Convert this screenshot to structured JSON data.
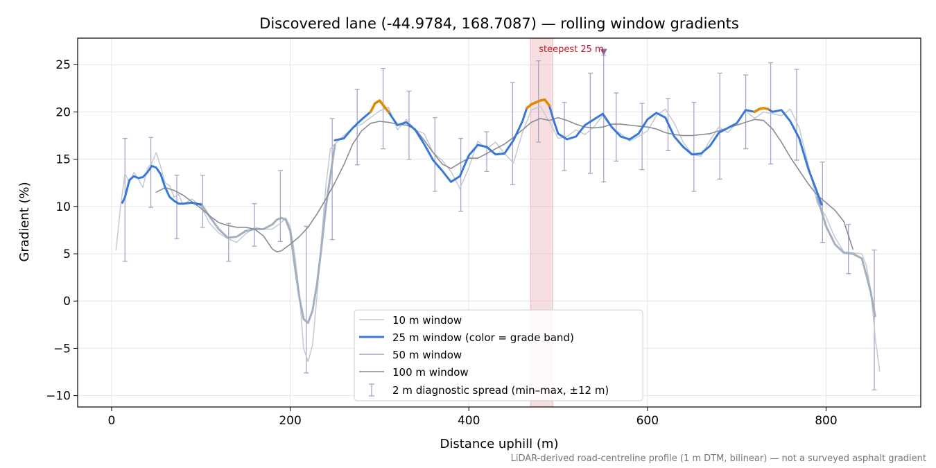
{
  "chart_data": {
    "type": "line",
    "title": "Discovered lane (-44.9784, 168.7087) — rolling window gradients",
    "xlabel": "Distance uphill (m)",
    "ylabel": "Gradient (%)",
    "xlim": [
      -38,
      906
    ],
    "ylim": [
      -11.2,
      27.8
    ],
    "x_ticks": [
      0,
      200,
      400,
      600,
      800
    ],
    "y_ticks": [
      -10,
      -5,
      0,
      5,
      10,
      15,
      20,
      25
    ],
    "grid": true,
    "legend_position": "lower-center",
    "footnote": "LiDAR-derived road-centreline profile (1 m DTM, bilinear) — not a surveyed asphalt gradient",
    "steepest": {
      "label": "steepest 25 m",
      "x_start": 469,
      "x_end": 494,
      "marker_x": 551,
      "marker_y": 26.3
    },
    "series": [
      {
        "name": "10 m window",
        "color": "#c3c8d2",
        "x": [
          5,
          10,
          15,
          20,
          25,
          30,
          35,
          40,
          45,
          50,
          55,
          60,
          65,
          70,
          75,
          80,
          90,
          100,
          110,
          120,
          130,
          140,
          150,
          160,
          170,
          180,
          190,
          195,
          200,
          205,
          210,
          215,
          220,
          225,
          230,
          235,
          240,
          245,
          250,
          260,
          270,
          280,
          290,
          300,
          310,
          320,
          330,
          340,
          350,
          360,
          370,
          380,
          390,
          400,
          410,
          420,
          430,
          440,
          450,
          460,
          470,
          480,
          490,
          500,
          510,
          520,
          530,
          540,
          550,
          560,
          570,
          580,
          590,
          600,
          610,
          620,
          630,
          640,
          650,
          660,
          670,
          680,
          690,
          700,
          710,
          720,
          730,
          740,
          750,
          760,
          770,
          780,
          790,
          800,
          810,
          820,
          830,
          840,
          845,
          850,
          855,
          860
        ],
        "values": [
          5.4,
          10.0,
          13.5,
          12.5,
          13.6,
          12.9,
          12.0,
          14.0,
          14.6,
          15.7,
          14.2,
          12.5,
          12.2,
          11.0,
          11.3,
          10.2,
          10.8,
          10.0,
          8.2,
          7.2,
          6.6,
          6.2,
          7.1,
          7.8,
          7.6,
          7.6,
          8.3,
          8.8,
          7.9,
          5.0,
          1.0,
          -5.0,
          -6.4,
          -4.6,
          0.5,
          6.6,
          12.2,
          16.1,
          16.6,
          17.5,
          18.3,
          18.7,
          19.4,
          20.1,
          20.5,
          18.1,
          19.2,
          18.1,
          17.7,
          15.7,
          14.9,
          13.7,
          11.9,
          14.1,
          16.9,
          16.1,
          16.8,
          15.6,
          14.6,
          17.8,
          20.2,
          20.6,
          19.0,
          17.2,
          17.4,
          18.1,
          17.6,
          18.4,
          19.6,
          18.3,
          17.7,
          16.9,
          17.4,
          18.0,
          19.6,
          20.3,
          18.8,
          16.8,
          15.5,
          15.3,
          17.0,
          18.4,
          17.8,
          18.9,
          20.1,
          19.3,
          20.0,
          19.8,
          19.6,
          20.3,
          18.3,
          14.5,
          10.4,
          8.9,
          6.7,
          5.2,
          5.1,
          5.0,
          3.8,
          1.1,
          -3.8,
          -7.4
        ]
      },
      {
        "name": "25 m window (color = grade band)",
        "color": "#3a78d8",
        "highlight_color": "#e08a00",
        "highlight_ranges": [
          [
            290,
            310
          ],
          [
            463,
            493
          ],
          [
            720,
            737
          ]
        ],
        "x": [
          12,
          15,
          20,
          25,
          30,
          35,
          40,
          45,
          50,
          55,
          60,
          65,
          70,
          75,
          80,
          90,
          100,
          250,
          260,
          270,
          280,
          290,
          295,
          300,
          305,
          310,
          320,
          330,
          340,
          350,
          360,
          370,
          380,
          390,
          400,
          410,
          420,
          430,
          440,
          450,
          460,
          465,
          470,
          475,
          480,
          485,
          490,
          495,
          500,
          510,
          520,
          530,
          540,
          550,
          560,
          570,
          580,
          590,
          600,
          610,
          620,
          630,
          640,
          650,
          660,
          670,
          680,
          690,
          700,
          710,
          720,
          725,
          730,
          735,
          740,
          750,
          760,
          770,
          780,
          790,
          795
        ],
        "values": [
          10.4,
          11.0,
          12.8,
          13.2,
          13.0,
          13.1,
          13.6,
          14.3,
          14.1,
          13.4,
          12.0,
          11.0,
          10.6,
          10.3,
          10.3,
          10.4,
          10.2,
          17.0,
          17.2,
          18.3,
          19.2,
          20.0,
          20.9,
          21.2,
          20.6,
          20.0,
          18.6,
          18.9,
          18.1,
          16.6,
          14.9,
          13.8,
          12.6,
          13.2,
          15.4,
          16.5,
          16.3,
          15.5,
          15.6,
          17.0,
          19.0,
          20.4,
          20.8,
          21.0,
          21.2,
          21.3,
          20.7,
          19.1,
          17.7,
          17.1,
          17.4,
          18.6,
          19.2,
          19.8,
          18.4,
          17.4,
          17.1,
          17.7,
          19.2,
          19.9,
          19.4,
          17.4,
          16.3,
          15.5,
          15.6,
          16.4,
          17.8,
          18.3,
          18.8,
          20.2,
          20.0,
          20.3,
          20.4,
          20.3,
          20.0,
          20.2,
          19.0,
          17.2,
          14.0,
          11.5,
          10.2
        ]
      },
      {
        "name": "50 m window",
        "color": "#9fabbd",
        "x": [
          100,
          110,
          120,
          130,
          140,
          150,
          160,
          170,
          180,
          185,
          190,
          195,
          200,
          205,
          210,
          215,
          220,
          225,
          230,
          235,
          240,
          250,
          790,
          800,
          810,
          820,
          830,
          840,
          845,
          850,
          855
        ],
        "values": [
          10.3,
          8.9,
          7.6,
          6.7,
          6.8,
          7.4,
          7.6,
          7.6,
          8.1,
          8.6,
          8.8,
          8.6,
          7.4,
          3.8,
          0.5,
          -1.9,
          -2.3,
          -1.0,
          1.8,
          5.7,
          10.0,
          16.5,
          11.0,
          7.9,
          6.0,
          5.1,
          5.0,
          4.5,
          2.8,
          0.9,
          -1.6
        ]
      },
      {
        "name": "100 m window",
        "color": "#868a96",
        "x": [
          50,
          60,
          70,
          80,
          90,
          100,
          110,
          120,
          130,
          140,
          150,
          160,
          170,
          180,
          185,
          190,
          200,
          210,
          220,
          230,
          240,
          250,
          260,
          270,
          280,
          290,
          300,
          310,
          320,
          330,
          340,
          350,
          360,
          370,
          380,
          390,
          400,
          410,
          420,
          430,
          440,
          450,
          460,
          470,
          480,
          490,
          500,
          510,
          520,
          530,
          540,
          550,
          560,
          570,
          580,
          590,
          600,
          610,
          620,
          630,
          640,
          650,
          660,
          670,
          680,
          690,
          700,
          710,
          720,
          730,
          740,
          750,
          760,
          770,
          780,
          790,
          800,
          810,
          820,
          830
        ],
        "values": [
          11.5,
          12.0,
          11.7,
          11.2,
          10.5,
          9.8,
          9.0,
          8.3,
          8.0,
          7.8,
          7.8,
          7.6,
          6.9,
          5.5,
          5.2,
          5.3,
          6.0,
          6.8,
          7.8,
          9.2,
          10.8,
          12.5,
          14.4,
          16.6,
          18.0,
          18.8,
          19.0,
          18.9,
          18.7,
          18.6,
          18.2,
          17.0,
          15.7,
          14.5,
          14.0,
          14.6,
          15.1,
          15.1,
          15.6,
          16.1,
          16.6,
          17.3,
          18.1,
          18.9,
          19.3,
          19.1,
          19.4,
          19.1,
          18.7,
          18.4,
          18.3,
          18.4,
          18.7,
          18.7,
          18.6,
          18.5,
          18.4,
          18.2,
          17.8,
          17.6,
          17.5,
          17.5,
          17.6,
          17.7,
          18.0,
          18.3,
          18.6,
          18.9,
          19.2,
          19.1,
          18.2,
          16.8,
          15.2,
          13.8,
          12.4,
          11.2,
          10.4,
          9.6,
          8.4,
          5.5
        ]
      }
    ],
    "error_bars": {
      "name": "2 m diagnostic spread (min–max, ±12 m)",
      "color": "#a8a4c6",
      "x": [
        15,
        44,
        73,
        102,
        131,
        160,
        189,
        218,
        247,
        275,
        304,
        333,
        362,
        391,
        420,
        449,
        478,
        507,
        536,
        551,
        565,
        594,
        623,
        652,
        681,
        710,
        738,
        767,
        796,
        825,
        854
      ],
      "low": [
        4.2,
        9.9,
        6.6,
        7.8,
        4.2,
        5.8,
        6.3,
        -7.6,
        6.5,
        14.4,
        16.1,
        15.0,
        11.6,
        9.5,
        13.7,
        12.3,
        16.8,
        13.8,
        13.5,
        12.6,
        14.8,
        13.9,
        15.9,
        11.6,
        12.9,
        16.1,
        14.5,
        14.9,
        6.2,
        2.9,
        -9.4
      ],
      "high": [
        17.2,
        17.3,
        13.3,
        13.3,
        8.2,
        10.3,
        13.8,
        7.9,
        19.3,
        22.4,
        24.6,
        22.2,
        19.4,
        17.2,
        17.9,
        23.1,
        25.4,
        21.0,
        24.1,
        26.0,
        22.0,
        20.9,
        21.4,
        21.0,
        24.1,
        23.9,
        25.2,
        24.5,
        14.7,
        8.1,
        5.4
      ]
    }
  }
}
